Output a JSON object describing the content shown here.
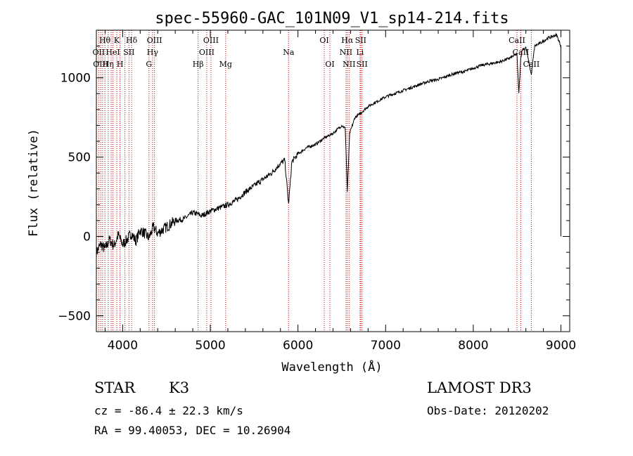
{
  "chart_data": {
    "type": "line",
    "title": "spec-55960-GAC_101N09_V1_sp14-214.fits",
    "xlabel": "Wavelength (Å)",
    "ylabel": "Flux (relative)",
    "xlim": [
      3700,
      9100
    ],
    "ylim": [
      -600,
      1300
    ],
    "x_ticks": [
      4000,
      5000,
      6000,
      7000,
      8000,
      9000
    ],
    "x_tick_labels": [
      "4000",
      "5000",
      "6000",
      "7000",
      "8000",
      "9000"
    ],
    "y_ticks": [
      -500,
      0,
      500,
      1000
    ],
    "y_tick_labels": [
      "−500",
      "0",
      "500",
      "1000"
    ],
    "grid": false,
    "series": [
      {
        "name": "spectrum",
        "color": "#000000",
        "x": [
          3700,
          3750,
          3800,
          3850,
          3900,
          3950,
          4000,
          4050,
          4100,
          4150,
          4200,
          4250,
          4300,
          4350,
          4400,
          4500,
          4600,
          4700,
          4800,
          4861,
          4900,
          5000,
          5100,
          5200,
          5300,
          5400,
          5500,
          5600,
          5700,
          5800,
          5850,
          5893,
          5930,
          6000,
          6100,
          6200,
          6300,
          6400,
          6500,
          6540,
          6563,
          6590,
          6650,
          6700,
          6800,
          6900,
          7000,
          7100,
          7200,
          7300,
          7400,
          7500,
          7600,
          7700,
          7800,
          7900,
          8000,
          8100,
          8200,
          8300,
          8400,
          8498,
          8520,
          8542,
          8560,
          8600,
          8662,
          8700,
          8800,
          8850,
          8900,
          8950,
          9000
        ],
        "values": [
          -100,
          -50,
          -80,
          -20,
          -60,
          10,
          -50,
          -20,
          20,
          -30,
          40,
          20,
          -10,
          60,
          20,
          60,
          100,
          110,
          150,
          140,
          130,
          160,
          180,
          200,
          230,
          280,
          320,
          360,
          400,
          460,
          480,
          200,
          470,
          520,
          560,
          580,
          620,
          650,
          700,
          680,
          280,
          650,
          750,
          770,
          820,
          850,
          880,
          900,
          920,
          940,
          960,
          980,
          990,
          1010,
          1030,
          1040,
          1060,
          1080,
          1090,
          1100,
          1120,
          1150,
          900,
          1130,
          1180,
          1190,
          1020,
          1200,
          1230,
          1250,
          1260,
          1270,
          1200
        ]
      }
    ],
    "annotation_lines": {
      "color": "#cc0000",
      "style": "dotted",
      "wavelengths": [
        3727,
        3750,
        3771,
        3798,
        3835,
        3869,
        3889,
        3933,
        3970,
        4026,
        4072,
        4102,
        4300,
        4341,
        4363,
        4861,
        4959,
        5007,
        5175,
        5893,
        6300,
        6364,
        6548,
        6563,
        6583,
        6708,
        6716,
        6731,
        8498,
        8542,
        8662
      ]
    },
    "line_labels": [
      {
        "text": "Hθ",
        "wavelength": 3797,
        "row": 1
      },
      {
        "text": "K",
        "wavelength": 3933,
        "row": 1
      },
      {
        "text": "Hδ",
        "wavelength": 4102,
        "row": 1
      },
      {
        "text": "OIII",
        "wavelength": 4363,
        "row": 1
      },
      {
        "text": "OIII",
        "wavelength": 5007,
        "row": 1
      },
      {
        "text": "OI",
        "wavelength": 6300,
        "row": 1
      },
      {
        "text": "Hα",
        "wavelength": 6563,
        "row": 1
      },
      {
        "text": "SII",
        "wavelength": 6716,
        "row": 1
      },
      {
        "text": "CaII",
        "wavelength": 8498,
        "row": 1
      },
      {
        "text": "OII",
        "wavelength": 3727,
        "row": 2
      },
      {
        "text": "HeI",
        "wavelength": 3889,
        "row": 2
      },
      {
        "text": "SII",
        "wavelength": 4072,
        "row": 2
      },
      {
        "text": "Hγ",
        "wavelength": 4341,
        "row": 2
      },
      {
        "text": "OIII",
        "wavelength": 4959,
        "row": 2
      },
      {
        "text": "Na",
        "wavelength": 5893,
        "row": 2
      },
      {
        "text": "NII",
        "wavelength": 6548,
        "row": 2
      },
      {
        "text": "Li",
        "wavelength": 6708,
        "row": 2
      },
      {
        "text": "CaII",
        "wavelength": 8542,
        "row": 2
      },
      {
        "text": "OIII",
        "wavelength": 3750,
        "row": 3
      },
      {
        "text": "Hη",
        "wavelength": 3835,
        "row": 3
      },
      {
        "text": "H",
        "wavelength": 3970,
        "row": 3
      },
      {
        "text": "G",
        "wavelength": 4300,
        "row": 3
      },
      {
        "text": "Hβ",
        "wavelength": 4861,
        "row": 3
      },
      {
        "text": "Mg",
        "wavelength": 5175,
        "row": 3
      },
      {
        "text": "OI",
        "wavelength": 6364,
        "row": 3
      },
      {
        "text": "NII",
        "wavelength": 6583,
        "row": 3
      },
      {
        "text": "SII",
        "wavelength": 6731,
        "row": 3
      },
      {
        "text": "CaII",
        "wavelength": 8662,
        "row": 3
      }
    ]
  },
  "info": {
    "object_class": "STAR",
    "subclass": "K3",
    "survey": "LAMOST DR3",
    "redshift_text": "cz = -86.4 ± 22.3 km/s",
    "obs_date_text": "Obs-Date: 20120202",
    "coords_text": "RA =  99.40053, DEC =  10.26904"
  }
}
